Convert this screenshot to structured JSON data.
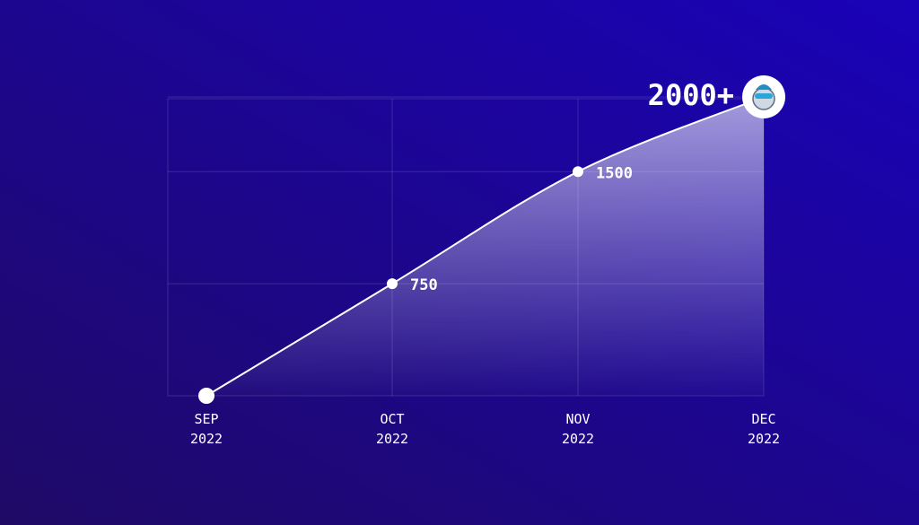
{
  "chart_data": {
    "type": "line",
    "categories": [
      "SEP 2022",
      "OCT 2022",
      "NOV 2022",
      "DEC 2022"
    ],
    "values": [
      0,
      750,
      1500,
      2000
    ],
    "value_labels": [
      null,
      null,
      null,
      "2000+"
    ],
    "color": "#ffffff",
    "ylim": [
      0,
      2000
    ],
    "grid": true
  }
}
